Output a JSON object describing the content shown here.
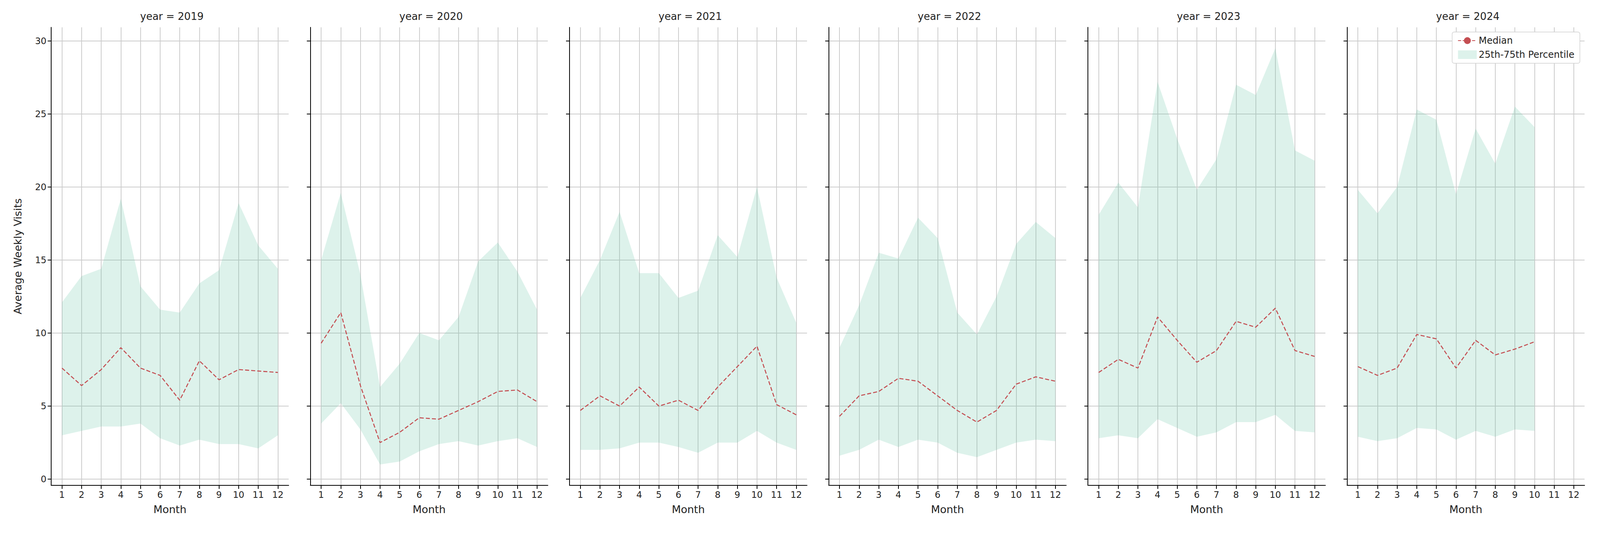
{
  "chart_data": [
    {
      "type": "line",
      "title": "year = 2019",
      "x_label": "Month",
      "y_label": "Average Weekly Visits",
      "x": [
        1,
        2,
        3,
        4,
        5,
        6,
        7,
        8,
        9,
        10,
        11,
        12
      ],
      "series": [
        {
          "name": "Median",
          "type": "line",
          "color": "#c44e52",
          "line_style": "dashed",
          "values": [
            7.6,
            6.4,
            7.5,
            9.0,
            7.6,
            7.1,
            5.4,
            8.1,
            6.8,
            7.5,
            7.4,
            7.3
          ]
        },
        {
          "name": "25th-75th Percentile",
          "type": "band",
          "color": "#66c2a5",
          "lower": [
            3.0,
            3.3,
            3.6,
            3.6,
            3.8,
            2.8,
            2.3,
            2.7,
            2.4,
            2.4,
            2.1,
            3.0
          ],
          "upper": [
            12.1,
            13.9,
            14.4,
            19.2,
            13.2,
            11.6,
            11.4,
            13.4,
            14.3,
            18.9,
            16.0,
            14.4
          ]
        }
      ],
      "xlim": [
        0.45,
        12.55
      ],
      "xticks": [
        1,
        2,
        3,
        4,
        5,
        6,
        7,
        8,
        9,
        10,
        11,
        12
      ],
      "ylim": [
        -0.43,
        30.93
      ],
      "yticks": [
        0,
        5,
        10,
        15,
        20,
        25,
        30
      ],
      "grid": true
    },
    {
      "type": "line",
      "title": "year = 2020",
      "x_label": "Month",
      "x": [
        1,
        2,
        3,
        4,
        5,
        6,
        7,
        8,
        9,
        10,
        11,
        12
      ],
      "series": [
        {
          "name": "Median",
          "type": "line",
          "color": "#c44e52",
          "line_style": "dashed",
          "values": [
            9.3,
            11.4,
            6.4,
            2.5,
            3.2,
            4.2,
            4.1,
            4.7,
            5.3,
            6.0,
            6.1,
            5.3
          ]
        },
        {
          "name": "25th-75th Percentile",
          "type": "band",
          "color": "#66c2a5",
          "lower": [
            3.8,
            5.2,
            3.4,
            1.0,
            1.2,
            1.9,
            2.4,
            2.6,
            2.3,
            2.6,
            2.8,
            2.2
          ],
          "upper": [
            15.0,
            19.6,
            14.0,
            6.3,
            7.9,
            10.0,
            9.5,
            11.1,
            14.9,
            16.2,
            14.2,
            11.6
          ]
        }
      ],
      "xlim": [
        0.45,
        12.55
      ],
      "xticks": [
        1,
        2,
        3,
        4,
        5,
        6,
        7,
        8,
        9,
        10,
        11,
        12
      ],
      "ylim": [
        -0.43,
        30.93
      ],
      "yticks": [
        0,
        5,
        10,
        15,
        20,
        25,
        30
      ],
      "grid": true,
      "tick_labels": "x"
    },
    {
      "type": "line",
      "title": "year = 2021",
      "x_label": "Month",
      "x": [
        1,
        2,
        3,
        4,
        5,
        6,
        7,
        8,
        9,
        10,
        11,
        12
      ],
      "series": [
        {
          "name": "Median",
          "type": "line",
          "color": "#c44e52",
          "line_style": "dashed",
          "values": [
            4.7,
            5.7,
            5.0,
            6.3,
            5.0,
            5.4,
            4.7,
            6.3,
            7.7,
            9.1,
            5.1,
            4.4
          ]
        },
        {
          "name": "25th-75th Percentile",
          "type": "band",
          "color": "#66c2a5",
          "lower": [
            2.0,
            2.0,
            2.1,
            2.5,
            2.5,
            2.2,
            1.8,
            2.5,
            2.5,
            3.3,
            2.5,
            2.0
          ],
          "upper": [
            12.4,
            15.0,
            18.3,
            14.1,
            14.1,
            12.4,
            12.9,
            16.7,
            15.2,
            20.0,
            13.8,
            10.7
          ]
        }
      ],
      "xlim": [
        0.45,
        12.55
      ],
      "xticks": [
        1,
        2,
        3,
        4,
        5,
        6,
        7,
        8,
        9,
        10,
        11,
        12
      ],
      "ylim": [
        -0.43,
        30.93
      ],
      "yticks": [
        0,
        5,
        10,
        15,
        20,
        25,
        30
      ],
      "grid": true,
      "tick_labels": "x"
    },
    {
      "type": "line",
      "title": "year = 2022",
      "x_label": "Month",
      "x": [
        1,
        2,
        3,
        4,
        5,
        6,
        7,
        8,
        9,
        10,
        11,
        12
      ],
      "series": [
        {
          "name": "Median",
          "type": "line",
          "color": "#c44e52",
          "line_style": "dashed",
          "values": [
            4.3,
            5.7,
            6.0,
            6.9,
            6.7,
            5.7,
            4.7,
            3.9,
            4.7,
            6.5,
            7.0,
            6.7
          ]
        },
        {
          "name": "25th-75th Percentile",
          "type": "band",
          "color": "#66c2a5",
          "lower": [
            1.6,
            2.0,
            2.7,
            2.2,
            2.7,
            2.5,
            1.8,
            1.5,
            2.0,
            2.5,
            2.7,
            2.6
          ],
          "upper": [
            9.0,
            11.9,
            15.5,
            15.1,
            17.9,
            16.5,
            11.4,
            9.9,
            12.5,
            16.1,
            17.6,
            16.5
          ]
        }
      ],
      "xlim": [
        0.45,
        12.55
      ],
      "xticks": [
        1,
        2,
        3,
        4,
        5,
        6,
        7,
        8,
        9,
        10,
        11,
        12
      ],
      "ylim": [
        -0.43,
        30.93
      ],
      "yticks": [
        0,
        5,
        10,
        15,
        20,
        25,
        30
      ],
      "grid": true,
      "tick_labels": "x"
    },
    {
      "type": "line",
      "title": "year = 2023",
      "x_label": "Month",
      "x": [
        1,
        2,
        3,
        4,
        5,
        6,
        7,
        8,
        9,
        10,
        11,
        12
      ],
      "series": [
        {
          "name": "Median",
          "type": "line",
          "color": "#c44e52",
          "line_style": "dashed",
          "values": [
            7.3,
            8.2,
            7.6,
            11.1,
            9.5,
            8.0,
            8.8,
            10.8,
            10.4,
            11.7,
            8.8,
            8.4
          ]
        },
        {
          "name": "25th-75th Percentile",
          "type": "band",
          "color": "#66c2a5",
          "lower": [
            2.8,
            3.0,
            2.8,
            4.1,
            3.5,
            2.9,
            3.2,
            3.9,
            3.9,
            4.4,
            3.3,
            3.2
          ],
          "upper": [
            18.1,
            20.3,
            18.6,
            27.2,
            23.3,
            19.8,
            21.9,
            27.0,
            26.3,
            29.5,
            22.5,
            21.8
          ]
        }
      ],
      "xlim": [
        0.45,
        12.55
      ],
      "xticks": [
        1,
        2,
        3,
        4,
        5,
        6,
        7,
        8,
        9,
        10,
        11,
        12
      ],
      "ylim": [
        -0.43,
        30.93
      ],
      "yticks": [
        0,
        5,
        10,
        15,
        20,
        25,
        30
      ],
      "grid": true,
      "tick_labels": "x"
    },
    {
      "type": "line",
      "title": "year = 2024",
      "x_label": "Month",
      "x": [
        1,
        2,
        3,
        4,
        5,
        6,
        7,
        8,
        9,
        10
      ],
      "series": [
        {
          "name": "Median",
          "type": "line",
          "color": "#c44e52",
          "line_style": "dashed",
          "values": [
            7.7,
            7.1,
            7.6,
            9.9,
            9.6,
            7.6,
            9.5,
            8.5,
            8.9,
            9.4
          ]
        },
        {
          "name": "25th-75th Percentile",
          "type": "band",
          "color": "#66c2a5",
          "lower": [
            2.9,
            2.6,
            2.8,
            3.5,
            3.4,
            2.7,
            3.3,
            2.9,
            3.4,
            3.3
          ],
          "upper": [
            19.8,
            18.2,
            20.0,
            25.3,
            24.6,
            19.5,
            24.0,
            21.6,
            25.5,
            24.1
          ]
        }
      ],
      "xlim": [
        0.45,
        12.55
      ],
      "xticks": [
        1,
        2,
        3,
        4,
        5,
        6,
        7,
        8,
        9,
        10,
        11,
        12
      ],
      "ylim": [
        -0.43,
        30.93
      ],
      "yticks": [
        0,
        5,
        10,
        15,
        20,
        25,
        30
      ],
      "grid": true,
      "tick_labels": "x",
      "legend": "upper right"
    }
  ]
}
